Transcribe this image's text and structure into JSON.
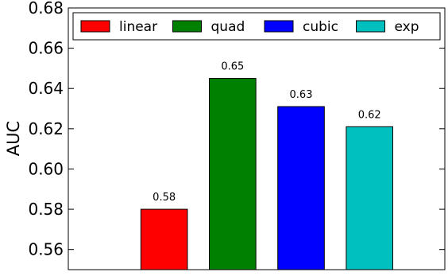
{
  "chart_data": {
    "type": "bar",
    "title": "",
    "xlabel": "",
    "ylabel": "AUC",
    "ylim": [
      0.55,
      0.68
    ],
    "yticks": [
      0.56,
      0.58,
      0.6,
      0.62,
      0.64,
      0.66,
      0.68
    ],
    "ytick_labels": [
      "0.56",
      "0.58",
      "0.60",
      "0.62",
      "0.64",
      "0.66",
      "0.68"
    ],
    "grid": false,
    "legend_position": "top",
    "series": [
      {
        "name": "linear",
        "value": 0.58,
        "label": "0.58",
        "color": "#ff0000"
      },
      {
        "name": "quad",
        "value": 0.645,
        "label": "0.65",
        "color": "#008000"
      },
      {
        "name": "cubic",
        "value": 0.631,
        "label": "0.63",
        "color": "#0000ff"
      },
      {
        "name": "exp",
        "value": 0.621,
        "label": "0.62",
        "color": "#00bfbf"
      }
    ]
  }
}
